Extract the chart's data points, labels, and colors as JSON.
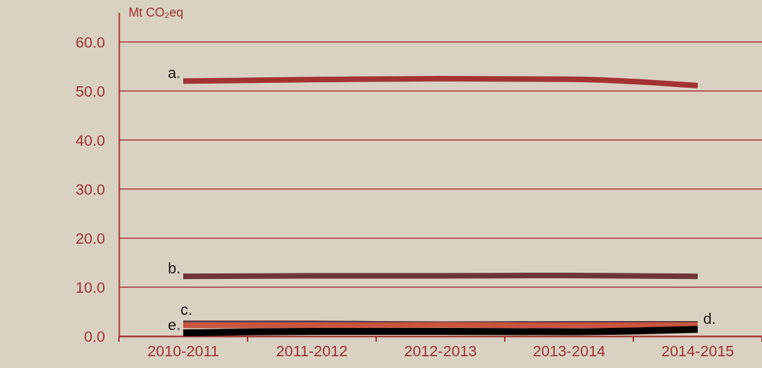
{
  "chart_data": {
    "type": "line",
    "ylabel": "Mt CO₂eq",
    "categories": [
      "2010-2011",
      "2011-2012",
      "2012-2013",
      "2013-2014",
      "2014-2015"
    ],
    "series": [
      {
        "name": "a.",
        "color": "#a33234",
        "values": [
          52.0,
          52.3,
          52.5,
          52.4,
          51.1
        ]
      },
      {
        "name": "b.",
        "color": "#6e3438",
        "values": [
          12.2,
          12.3,
          12.3,
          12.4,
          12.2
        ]
      },
      {
        "name": "c.",
        "color": "#5a3a40",
        "values": [
          3.0,
          3.0,
          2.8,
          2.9,
          2.9
        ]
      },
      {
        "name": "d.",
        "color": "#c9553f",
        "values": [
          2.2,
          2.2,
          2.3,
          2.2,
          2.3
        ]
      },
      {
        "name": "e.",
        "color": "#000000",
        "values": [
          0.7,
          1.0,
          1.0,
          0.9,
          1.4
        ]
      }
    ],
    "ylim": [
      0,
      66
    ],
    "yticks": [
      {
        "value": 0,
        "label": "0.0"
      },
      {
        "value": 10,
        "label": "10.0"
      },
      {
        "value": 20,
        "label": "20.0"
      },
      {
        "value": 30,
        "label": "30.0"
      },
      {
        "value": 40,
        "label": "40.0"
      },
      {
        "value": 50,
        "label": "50.0"
      },
      {
        "value": 60,
        "label": "60.0"
      }
    ],
    "grid": "y",
    "marker": "none",
    "line_style": "solid"
  }
}
